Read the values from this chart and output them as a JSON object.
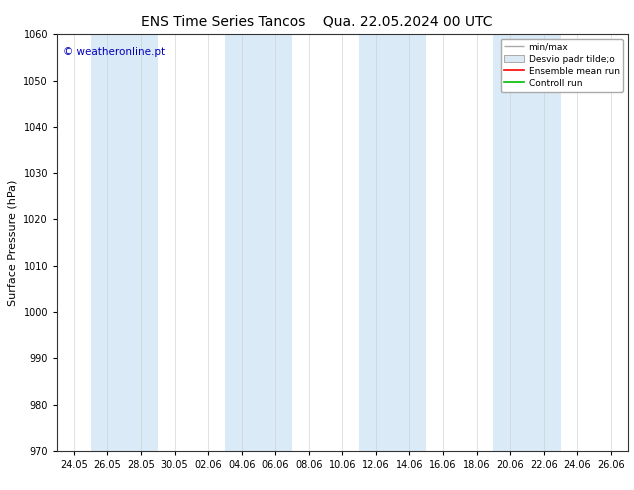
{
  "title_left": "ENS Time Series Tancos",
  "title_right": "Qua. 22.05.2024 00 UTC",
  "ylabel": "Surface Pressure (hPa)",
  "ylim": [
    970,
    1060
  ],
  "yticks": [
    970,
    980,
    990,
    1000,
    1010,
    1020,
    1030,
    1040,
    1050,
    1060
  ],
  "xtick_labels": [
    "24.05",
    "26.05",
    "28.05",
    "30.05",
    "02.06",
    "04.06",
    "06.06",
    "08.06",
    "10.06",
    "12.06",
    "14.06",
    "16.06",
    "18.06",
    "20.06",
    "22.06",
    "24.06",
    "26.06"
  ],
  "copyright_text": "© weatheronline.pt",
  "copyright_color": "#0000bb",
  "band_color": "#daeaf6",
  "bg_color": "#ffffff",
  "title_fontsize": 10,
  "tick_fontsize": 7,
  "ylabel_fontsize": 8,
  "legend_minmax_color": "#aaaaaa",
  "legend_desvio_face": "#dce9f5",
  "legend_desvio_edge": "#aaaaaa",
  "legend_ens_color": "#ff0000",
  "legend_ctrl_color": "#00bb00"
}
